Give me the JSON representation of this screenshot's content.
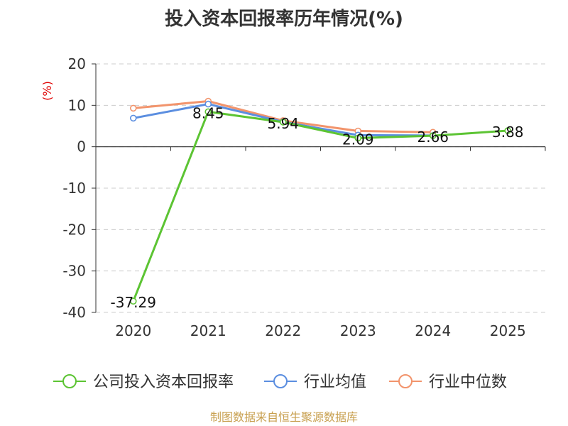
{
  "colors": {
    "company": "#5cc433",
    "avg": "#5b8ee0",
    "median": "#f2946c",
    "axis_unit": "#e00000",
    "grid": "#cccccc",
    "source": "#c8a050"
  },
  "chart_data": {
    "type": "line",
    "title": "投入资本回报率历年情况(%)",
    "ylabel": "(%)",
    "ylim": [
      -40,
      20
    ],
    "yticks": [
      20,
      10,
      0,
      -10,
      -20,
      -30,
      -40
    ],
    "categories": [
      "2020",
      "2021",
      "2022",
      "2023",
      "2024",
      "2025"
    ],
    "series": [
      {
        "name": "公司投入资本回报率",
        "color": "#5cc433",
        "values": [
          -37.29,
          8.45,
          5.94,
          2.09,
          2.66,
          3.88
        ],
        "labels": [
          "-37.29",
          "8.45",
          "5.94",
          "2.09",
          "2.66",
          "3.88"
        ]
      },
      {
        "name": "行业均值",
        "color": "#5b8ee0",
        "values": [
          6.9,
          10.3,
          6.0,
          2.8,
          2.7,
          null
        ]
      },
      {
        "name": "行业中位数",
        "color": "#f2946c",
        "values": [
          9.3,
          11.0,
          6.3,
          3.8,
          3.5,
          null
        ]
      }
    ],
    "grid": true,
    "legend_position": "bottom"
  },
  "footer": {
    "source": "制图数据来自恒生聚源数据库"
  }
}
